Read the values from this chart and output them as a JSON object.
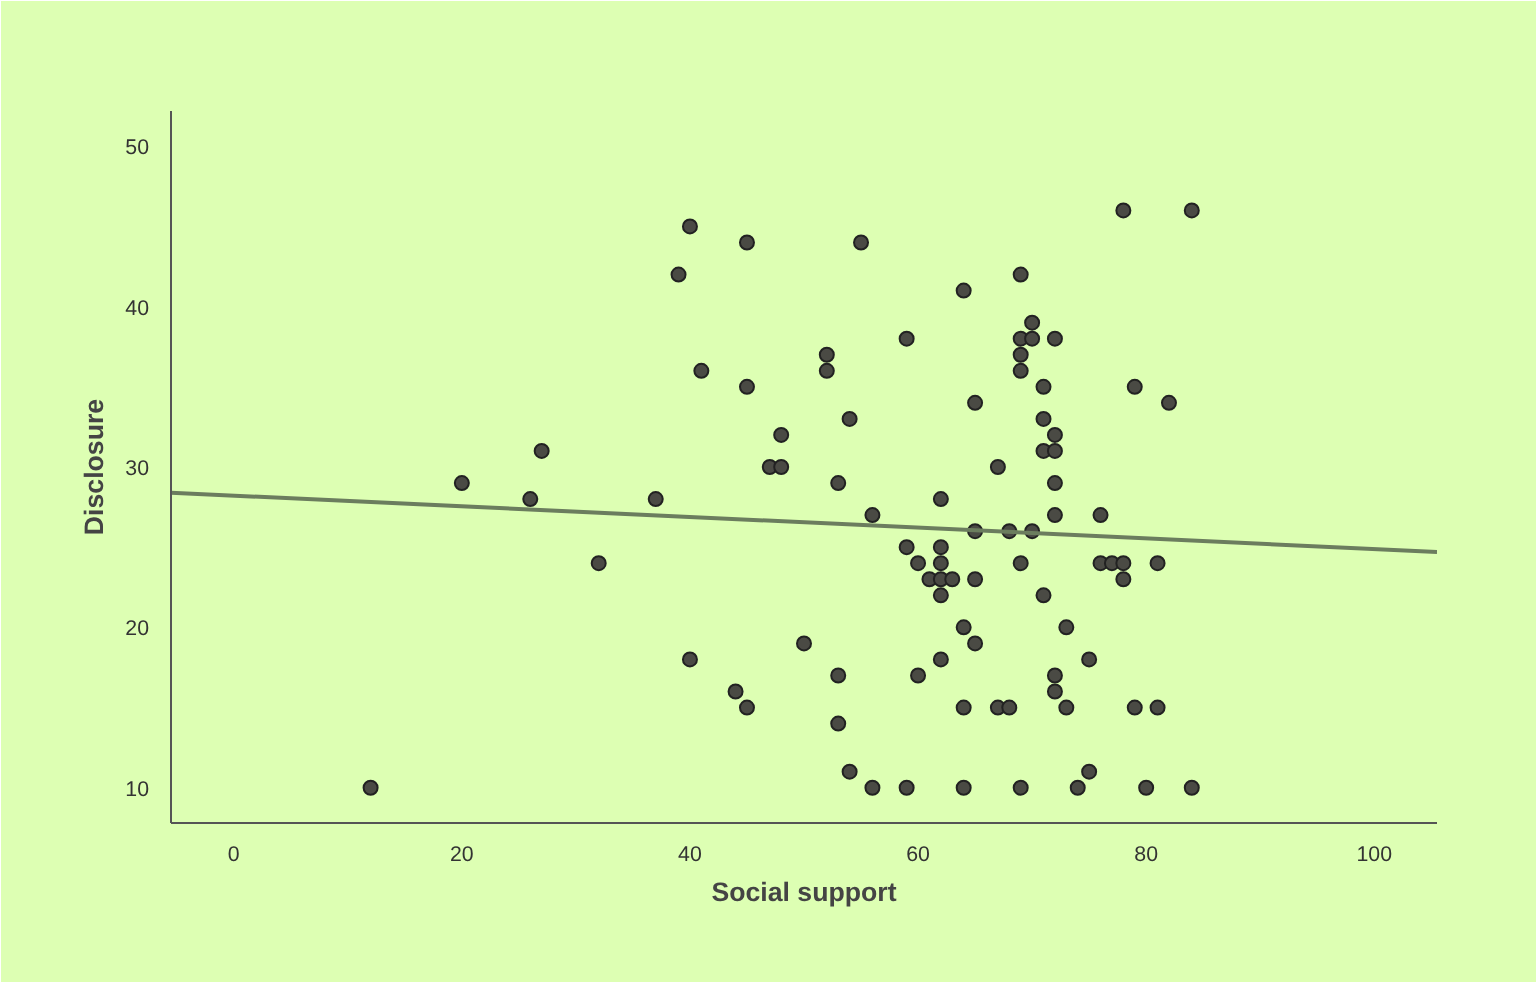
{
  "chart_data": {
    "type": "scatter",
    "xlabel": "Social support",
    "ylabel": "Disclosure",
    "xlim": [
      -5.5,
      105.5
    ],
    "ylim": [
      7.8,
      52.2
    ],
    "xticks": [
      0,
      20,
      40,
      60,
      80,
      100
    ],
    "yticks": [
      10,
      20,
      30,
      40,
      50
    ],
    "grid": false,
    "series": [
      {
        "marker": "circle",
        "color": "#4a4a44",
        "x": [
          12,
          20,
          26,
          27,
          32,
          37,
          39,
          40,
          41,
          45,
          45,
          48,
          47,
          48,
          40,
          44,
          45,
          50,
          52,
          52,
          54,
          53,
          53,
          53,
          54,
          56,
          56,
          55,
          59,
          59,
          59,
          60,
          60,
          61,
          62,
          62,
          62,
          62,
          62,
          62,
          63,
          64,
          64,
          64,
          64,
          65,
          65,
          65,
          65,
          67,
          67,
          68,
          68,
          69,
          69,
          69,
          69,
          69,
          69,
          70,
          70,
          70,
          71,
          71,
          71,
          71,
          72,
          72,
          72,
          72,
          72,
          72,
          72,
          73,
          73,
          74,
          75,
          75,
          76,
          76,
          77,
          78,
          78,
          78,
          79,
          79,
          80,
          81,
          81,
          82,
          84,
          84
        ],
        "values": [
          10,
          29,
          28,
          31,
          24,
          28,
          42,
          45,
          36,
          44,
          35,
          32,
          30,
          30,
          18,
          16,
          15,
          19,
          37,
          36,
          33,
          29,
          17,
          14,
          11,
          10,
          27,
          44,
          38,
          25,
          10,
          17,
          24,
          23,
          22,
          25,
          23,
          24,
          28,
          18,
          23,
          41,
          20,
          15,
          10,
          34,
          26,
          23,
          19,
          30,
          15,
          15,
          26,
          42,
          38,
          37,
          36,
          24,
          10,
          39,
          38,
          26,
          35,
          33,
          31,
          22,
          38,
          32,
          31,
          29,
          27,
          17,
          16,
          20,
          15,
          10,
          18,
          11,
          27,
          24,
          24,
          46,
          24,
          23,
          35,
          15,
          10,
          24,
          15,
          34,
          46,
          10
        ]
      },
      {
        "type": "line",
        "color": "#6b7d5e",
        "x": [
          -5.5,
          105.5
        ],
        "values": [
          28.4,
          24.7
        ]
      }
    ]
  }
}
